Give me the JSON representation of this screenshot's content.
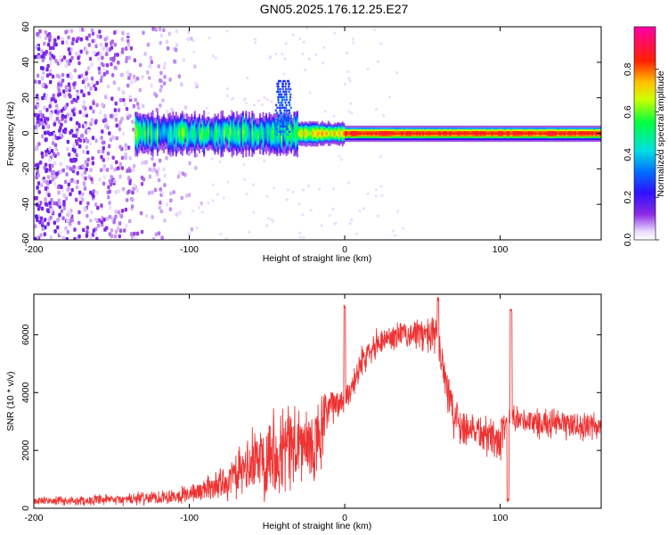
{
  "title": "GN05.2025.176.12.25.E27",
  "chart_data": [
    {
      "type": "heatmap",
      "xlabel": "Height of straight line (km)",
      "ylabel": "Frequency (Hz)",
      "xlim": [
        -200,
        165
      ],
      "ylim": [
        -60,
        60
      ],
      "xticks": [
        "-200",
        "-100",
        "0",
        "100"
      ],
      "yticks": [
        "-60",
        "-40",
        "-20",
        "0",
        "20",
        "40",
        "60"
      ],
      "colorbar": {
        "label": "Normalized spectral amplitude",
        "range": [
          0,
          1
        ],
        "ticks": [
          "0.0",
          "0.2",
          "0.4",
          "0.6",
          "0.8"
        ],
        "colormap": "rainbow (purple-blue-cyan-green-yellow-red-magenta)"
      },
      "features": {
        "noise_region_x": [
          -200,
          -100
        ],
        "signal_start_x": -135,
        "signal_frequency_hz": 0,
        "broadened_region_x": [
          -135,
          -30
        ],
        "strong_band_start_x": 0,
        "spike_near_x": -40,
        "spike_top_hz": 30
      }
    },
    {
      "type": "line",
      "xlabel": "Height of straight line (km)",
      "ylabel": "SNR (10 * v/v)",
      "xlim": [
        -200,
        165
      ],
      "ylim": [
        0,
        7400
      ],
      "xticks": [
        "-200",
        "-100",
        "0",
        "100"
      ],
      "yticks": [
        "0",
        "2000",
        "4000",
        "6000"
      ],
      "color": "#ee3333",
      "series": [
        {
          "x": [
            -200,
            -180,
            -160,
            -140,
            -120,
            -100,
            -90,
            -80,
            -70,
            -60,
            -50,
            -40,
            -30,
            -20,
            -15,
            -10,
            -5,
            0,
            5,
            10,
            15,
            20,
            25,
            30,
            35,
            40,
            45,
            50,
            55,
            60,
            65,
            70,
            75,
            80,
            85,
            90,
            95,
            100,
            105,
            110,
            115,
            120,
            125,
            130,
            135,
            140,
            145,
            150,
            155,
            160,
            165
          ],
          "mean": [
            250,
            250,
            270,
            300,
            380,
            500,
            650,
            850,
            1100,
            1500,
            1950,
            2100,
            2200,
            2000,
            2600,
            3500,
            3600,
            3750,
            4300,
            4900,
            5500,
            5700,
            5850,
            5900,
            6000,
            6000,
            6050,
            6000,
            5950,
            5900,
            4500,
            3200,
            2900,
            2800,
            2700,
            2500,
            2500,
            2300,
            2900,
            3000,
            3000,
            3000,
            2950,
            2950,
            2900,
            2900,
            2900,
            2850,
            2800,
            2800,
            2800
          ],
          "amp": [
            130,
            150,
            170,
            200,
            250,
            300,
            400,
            550,
            750,
            1100,
            1500,
            1600,
            1500,
            1300,
            1400,
            650,
            550,
            550,
            500,
            500,
            500,
            480,
            450,
            450,
            450,
            450,
            500,
            600,
            650,
            700,
            900,
            900,
            700,
            650,
            650,
            700,
            700,
            700,
            600,
            500,
            500,
            500,
            500,
            500,
            500,
            500,
            500,
            500,
            500,
            500,
            500
          ]
        }
      ],
      "annotations": [
        {
          "label": "spike",
          "x": 0,
          "y": 7050
        },
        {
          "label": "spike",
          "x": 60,
          "y": 7300
        },
        {
          "label": "spike",
          "x": 107,
          "y": 6900
        },
        {
          "label": "dip",
          "x": 105,
          "y": 200
        }
      ]
    }
  ]
}
